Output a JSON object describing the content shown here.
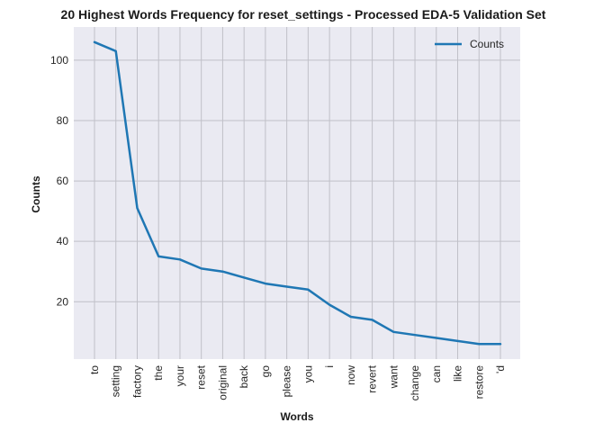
{
  "chart_data": {
    "type": "line",
    "title": "20 Highest Words Frequency for reset_settings - Processed EDA-5 Validation Set",
    "xlabel": "Words",
    "ylabel": "Counts",
    "categories": [
      "to",
      "setting",
      "factory",
      "the",
      "your",
      "reset",
      "original",
      "back",
      "go",
      "please",
      "you",
      "i",
      "now",
      "revert",
      "want",
      "change",
      "can",
      "like",
      "restore",
      "'d"
    ],
    "series": [
      {
        "name": "Counts",
        "values": [
          106,
          103,
          51,
          35,
          34,
          31,
          30,
          28,
          26,
          25,
          24,
          19,
          15,
          14,
          10,
          9,
          8,
          7,
          6,
          6
        ],
        "color": "#1f77b4"
      }
    ],
    "ylim": [
      1.0,
      111.0
    ],
    "yticks": [
      20,
      40,
      60,
      80,
      100
    ],
    "grid": true,
    "legend": "top-right",
    "background": "#eaeaf2",
    "gridColor": "#c0c0c8"
  }
}
